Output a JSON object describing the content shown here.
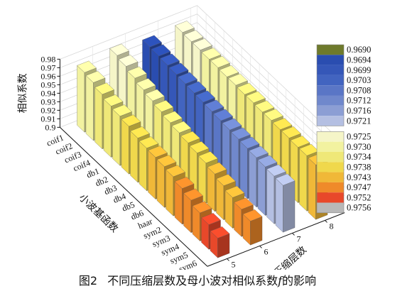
{
  "caption": {
    "number": "图2",
    "text": "不同压缩层数及母小波对相似系数",
    "symbol": "f",
    "suffix": "的影响"
  },
  "chart_data": {
    "type": "bar3d",
    "z_axis_label": "相似系数",
    "x_axis_label": "小波基函数",
    "y_axis_label": "压缩层数",
    "z_ticks": [
      "0.98",
      "0.97",
      "0.96",
      "0.95",
      "0.94",
      "0.93",
      "0.92",
      "0.91",
      "0.9"
    ],
    "zlim": [
      0.9,
      0.98
    ],
    "y_ticks": [
      "5",
      "6",
      "7",
      "8"
    ],
    "categories": [
      "coif1",
      "coif2",
      "coif3",
      "coif4",
      "db1",
      "db2",
      "db3",
      "db4",
      "db5",
      "db6",
      "haar",
      "sym2",
      "sym3",
      "sym4",
      "sym5",
      "sym6"
    ],
    "layers": [
      5,
      6,
      7,
      8
    ],
    "values": {
      "5": [
        0.97,
        0.968,
        0.964,
        0.96,
        0.958,
        0.956,
        0.952,
        0.95,
        0.949,
        0.948,
        0.946,
        0.942,
        0.938,
        0.933,
        0.929,
        0.923
      ],
      "6": [
        0.975,
        0.972,
        0.968,
        0.964,
        0.961,
        0.958,
        0.955,
        0.953,
        0.951,
        0.949,
        0.947,
        0.944,
        0.94,
        0.936,
        0.932,
        0.928
      ],
      "7": [
        0.97,
        0.969,
        0.968,
        0.967,
        0.966,
        0.965,
        0.964,
        0.963,
        0.962,
        0.961,
        0.96,
        0.959,
        0.958,
        0.957,
        0.956,
        0.955
      ],
      "8": [
        0.972,
        0.971,
        0.971,
        0.97,
        0.97,
        0.969,
        0.969,
        0.968,
        0.968,
        0.967,
        0.967,
        0.966,
        0.966,
        0.965,
        0.965,
        0.964
      ]
    },
    "colorbar": {
      "labels": [
        "0.9690",
        "0.9694",
        "0.9699",
        "0.9703",
        "0.9708",
        "0.9712",
        "0.9716",
        "0.9721",
        "0.9725",
        "0.9730",
        "0.9734",
        "0.9738",
        "0.9743",
        "0.9747",
        "0.9752",
        "0.9756"
      ],
      "colors": [
        "#6e7a2c",
        "#2a4db0",
        "#3557b8",
        "#4264c0",
        "#5a76c6",
        "#7088cc",
        "#8c9ed4",
        "#b4bfe2",
        "#f5f5c8",
        "#f2f2a0",
        "#efe878",
        "#f0d84c",
        "#f0b838",
        "#ef8a2a",
        "#e8482a",
        "#b8b8b8"
      ]
    }
  }
}
